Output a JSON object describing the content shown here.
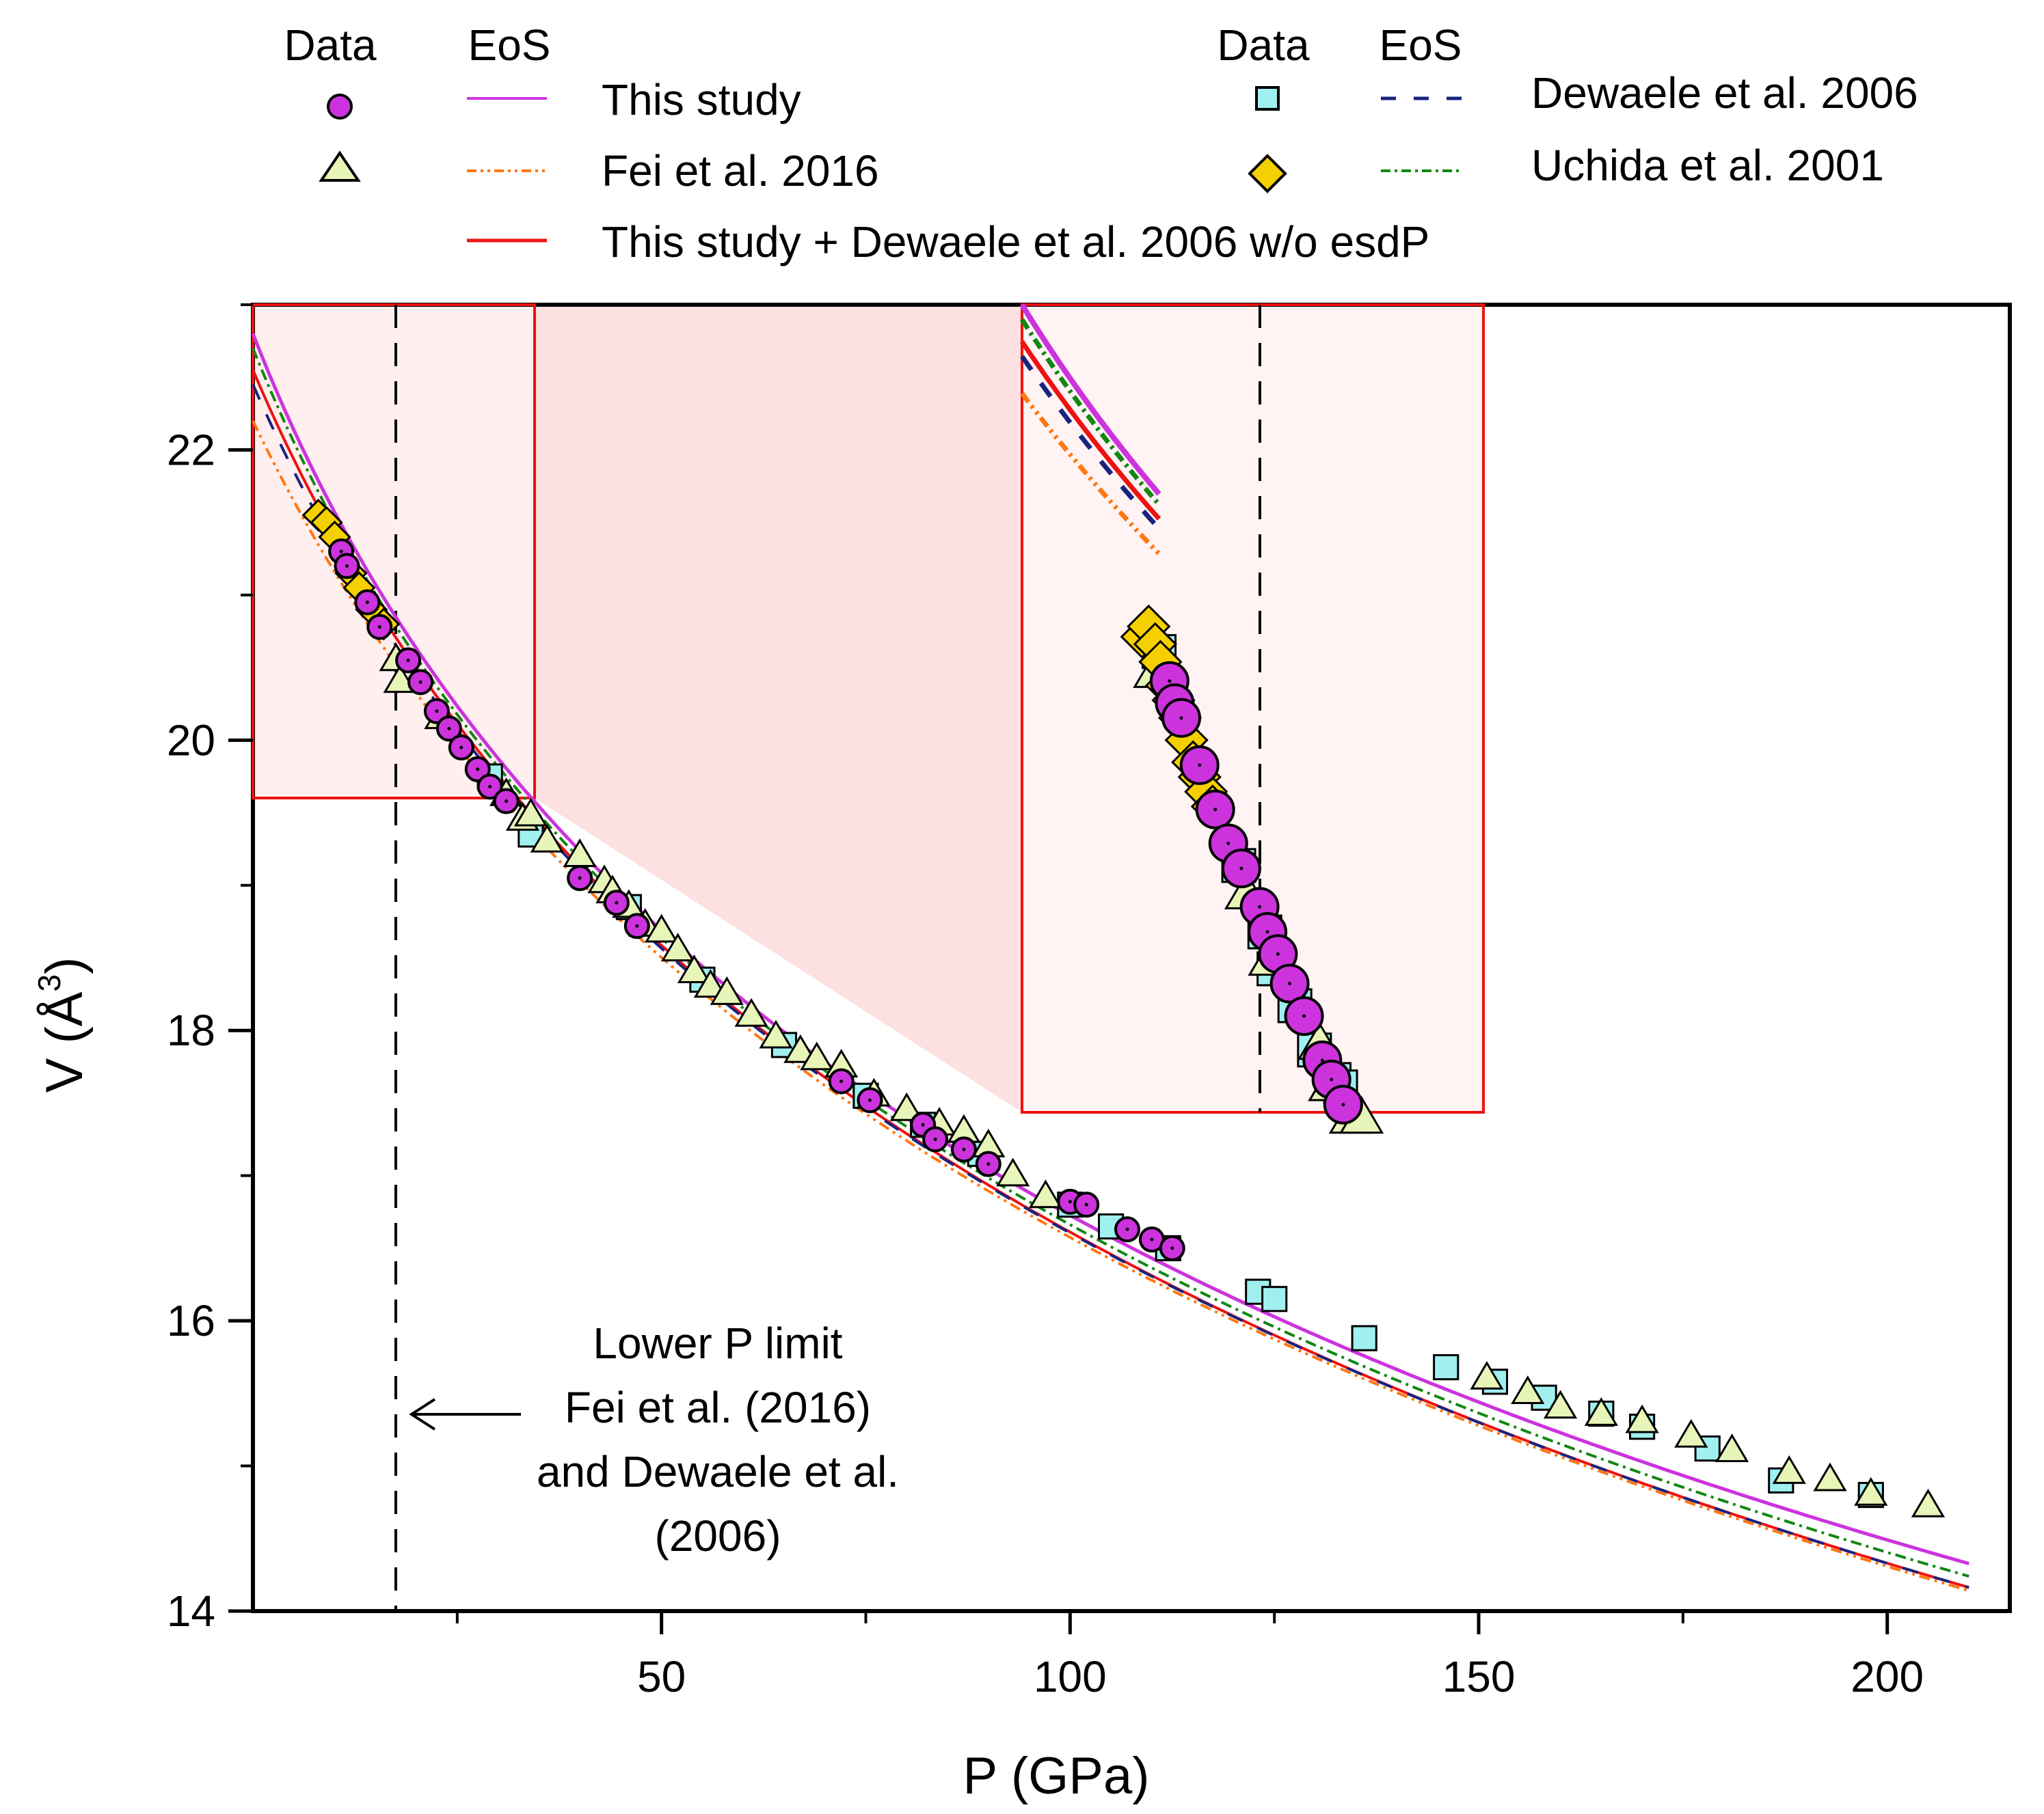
{
  "chart_data": {
    "type": "scatter",
    "xlabel": "P (GPa)",
    "ylabel_main": "V (Å",
    "ylabel_sup": "3",
    "ylabel_close": ")",
    "xlim": [
      0,
      215
    ],
    "ylim": [
      14,
      23
    ],
    "xticks": [
      50,
      100,
      150,
      200
    ],
    "yticks": [
      14,
      16,
      18,
      20,
      22
    ],
    "xticklabels": [
      "50",
      "100",
      "150",
      "200"
    ],
    "yticklabels": [
      "14",
      "16",
      "18",
      "20",
      "22"
    ],
    "legend": {
      "data_header": "Data",
      "eos_header": "EoS",
      "entries": [
        {
          "label": "This study",
          "marker": "circle",
          "line": "solid",
          "color": "#cc33dd"
        },
        {
          "label": "Fei et al. 2016",
          "marker": "triangle",
          "line": "dashdotdot",
          "color": "#ff7711"
        },
        {
          "label": "This study + Dewaele et al. 2006 w/o esdP",
          "marker": "none",
          "line": "solid",
          "color": "#ee1111"
        },
        {
          "label": "Dewaele et al. 2006",
          "marker": "square",
          "line": "dash",
          "color": "#1a237e"
        },
        {
          "label": "Uchida et al. 2001",
          "marker": "diamond",
          "line": "dashdot",
          "color": "#118811"
        }
      ]
    },
    "annotation": {
      "lines": [
        "Lower P limit",
        "Fei et al. (2016)",
        "and Dewaele et al.",
        "(2006)"
      ],
      "lower_p_limit_gpa": 17.5
    },
    "zoom_region": {
      "xrange": [
        0,
        35
      ],
      "yrange": [
        19.6,
        23
      ]
    },
    "series": [
      {
        "name": "This study",
        "marker": "circle",
        "color": "#cc33dd",
        "points": [
          [
            10.8,
            21.3
          ],
          [
            11.5,
            21.2
          ],
          [
            14,
            20.95
          ],
          [
            15.5,
            20.78
          ],
          [
            19,
            20.55
          ],
          [
            20.5,
            20.4
          ],
          [
            22.5,
            20.2
          ],
          [
            24,
            20.08
          ],
          [
            25.5,
            19.95
          ],
          [
            27.5,
            19.8
          ],
          [
            29,
            19.68
          ],
          [
            31,
            19.58
          ],
          [
            40,
            19.05
          ],
          [
            44.5,
            18.88
          ],
          [
            47,
            18.72
          ],
          [
            72,
            17.65
          ],
          [
            75.5,
            17.52
          ],
          [
            82,
            17.35
          ],
          [
            83.5,
            17.25
          ],
          [
            87,
            17.18
          ],
          [
            90,
            17.08
          ],
          [
            100,
            16.82
          ],
          [
            102,
            16.8
          ],
          [
            107,
            16.63
          ],
          [
            110,
            16.56
          ],
          [
            112.5,
            16.5
          ]
        ]
      },
      {
        "name": "Fei et al. 2016",
        "marker": "triangle",
        "color": "#e8f5b8",
        "points": [
          [
            17.5,
            20.55
          ],
          [
            18,
            20.4
          ],
          [
            23,
            20.15
          ],
          [
            31,
            19.62
          ],
          [
            33,
            19.45
          ],
          [
            34,
            19.48
          ],
          [
            36,
            19.3
          ],
          [
            40,
            19.2
          ],
          [
            43,
            19.02
          ],
          [
            44,
            18.95
          ],
          [
            46,
            18.85
          ],
          [
            48,
            18.72
          ],
          [
            50,
            18.68
          ],
          [
            52,
            18.55
          ],
          [
            54,
            18.4
          ],
          [
            56,
            18.3
          ],
          [
            58,
            18.25
          ],
          [
            61,
            18.1
          ],
          [
            64,
            17.95
          ],
          [
            67,
            17.85
          ],
          [
            69,
            17.8
          ],
          [
            72,
            17.75
          ],
          [
            76,
            17.55
          ],
          [
            80,
            17.45
          ],
          [
            84,
            17.35
          ],
          [
            87,
            17.3
          ],
          [
            90,
            17.2
          ],
          [
            93,
            17.0
          ],
          [
            97,
            16.85
          ],
          [
            151,
            15.6
          ],
          [
            156,
            15.5
          ],
          [
            160,
            15.4
          ],
          [
            165,
            15.35
          ],
          [
            170,
            15.3
          ],
          [
            176,
            15.2
          ],
          [
            181,
            15.1
          ],
          [
            188,
            14.95
          ],
          [
            193,
            14.9
          ],
          [
            198,
            14.8
          ],
          [
            205,
            14.72
          ]
        ]
      },
      {
        "name": "Dewaele et al. 2006",
        "marker": "square",
        "color": "#a0f0f0",
        "points": [
          [
            29,
            19.75
          ],
          [
            34,
            19.35
          ],
          [
            46,
            18.85
          ],
          [
            55,
            18.35
          ],
          [
            65,
            17.9
          ],
          [
            75,
            17.55
          ],
          [
            82,
            17.35
          ],
          [
            89,
            17.15
          ],
          [
            100,
            16.8
          ],
          [
            105,
            16.65
          ],
          [
            112,
            16.5
          ],
          [
            123,
            16.2
          ],
          [
            125,
            16.15
          ],
          [
            136,
            15.88
          ],
          [
            146,
            15.68
          ],
          [
            152,
            15.58
          ],
          [
            158,
            15.47
          ],
          [
            165,
            15.36
          ],
          [
            170,
            15.27
          ],
          [
            178,
            15.12
          ],
          [
            187,
            14.9
          ],
          [
            198,
            14.8
          ]
        ]
      },
      {
        "name": "Uchida et al. 2001",
        "marker": "diamond",
        "color": "#f5d000",
        "points": [
          [
            8,
            21.55
          ],
          [
            9,
            21.5
          ],
          [
            10,
            21.4
          ],
          [
            12,
            21.15
          ],
          [
            13,
            21.05
          ],
          [
            14.5,
            20.9
          ],
          [
            16,
            20.8
          ]
        ]
      }
    ],
    "zoom_series": [
      {
        "name": "This study",
        "marker": "circle",
        "points": [
          [
            11.3,
            20.25
          ],
          [
            11.7,
            20.1
          ],
          [
            12.2,
            20.0
          ],
          [
            13.6,
            19.68
          ],
          [
            14.8,
            19.38
          ],
          [
            15.8,
            19.15
          ],
          [
            16.8,
            18.98
          ],
          [
            18.2,
            18.72
          ],
          [
            18.8,
            18.55
          ],
          [
            19.6,
            18.4
          ],
          [
            20.5,
            18.2
          ],
          [
            21.6,
            17.98
          ],
          [
            23.0,
            17.68
          ],
          [
            23.7,
            17.55
          ],
          [
            24.6,
            17.38
          ]
        ]
      },
      {
        "name": "Fei et al. 2016",
        "marker": "triangle",
        "points": [
          [
            10.2,
            20.3
          ],
          [
            17.2,
            18.8
          ],
          [
            19.0,
            18.35
          ],
          [
            22.8,
            17.78
          ],
          [
            23.6,
            17.5
          ],
          [
            25.2,
            17.28
          ],
          [
            26.0,
            17.28
          ]
        ]
      },
      {
        "name": "Dewaele et al. 2006",
        "marker": "square",
        "points": [
          [
            10.5,
            20.45
          ],
          [
            16.6,
            19.0
          ],
          [
            18.6,
            18.55
          ],
          [
            19.3,
            18.3
          ],
          [
            20.9,
            18.05
          ],
          [
            22.4,
            17.75
          ],
          [
            23.9,
            17.55
          ],
          [
            24.4,
            17.5
          ]
        ]
      },
      {
        "name": "Uchida et al. 2001",
        "marker": "diamond",
        "points": [
          [
            9.2,
            20.55
          ],
          [
            9.7,
            20.62
          ],
          [
            10.2,
            20.5
          ],
          [
            10.6,
            20.38
          ],
          [
            11.1,
            20.22
          ],
          [
            11.6,
            20.12
          ],
          [
            12.1,
            20.0
          ],
          [
            12.6,
            19.85
          ],
          [
            13.1,
            19.7
          ],
          [
            13.6,
            19.6
          ],
          [
            14.1,
            19.5
          ],
          [
            14.6,
            19.4
          ]
        ]
      }
    ]
  }
}
